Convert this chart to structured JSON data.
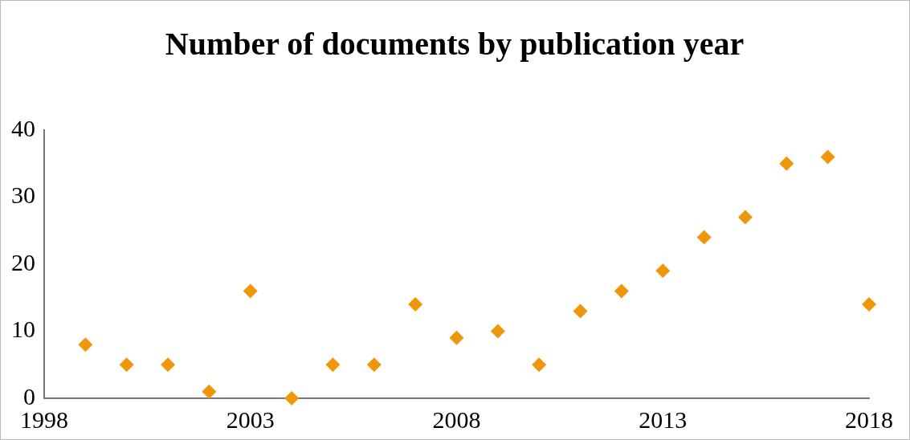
{
  "chart_data": {
    "type": "scatter",
    "title": "Number of documents by publication year",
    "x": [
      1999,
      2000,
      2001,
      2002,
      2003,
      2004,
      2005,
      2006,
      2007,
      2008,
      2009,
      2010,
      2011,
      2012,
      2013,
      2014,
      2015,
      2016,
      2017,
      2018
    ],
    "series": [
      {
        "color": "#f0960a",
        "values": [
          8,
          5,
          5,
          1,
          16,
          0,
          5,
          5,
          14,
          9,
          10,
          5,
          13,
          16,
          19,
          24,
          27,
          35,
          36,
          14
        ]
      }
    ],
    "xlim": [
      1998,
      2018
    ],
    "xticks": [
      1998,
      2003,
      2008,
      2013,
      2018
    ],
    "ylim": [
      0,
      40
    ],
    "yticks": [
      0,
      10,
      20,
      30,
      40
    ],
    "grid": false,
    "legend": false,
    "marker": "diamond"
  }
}
